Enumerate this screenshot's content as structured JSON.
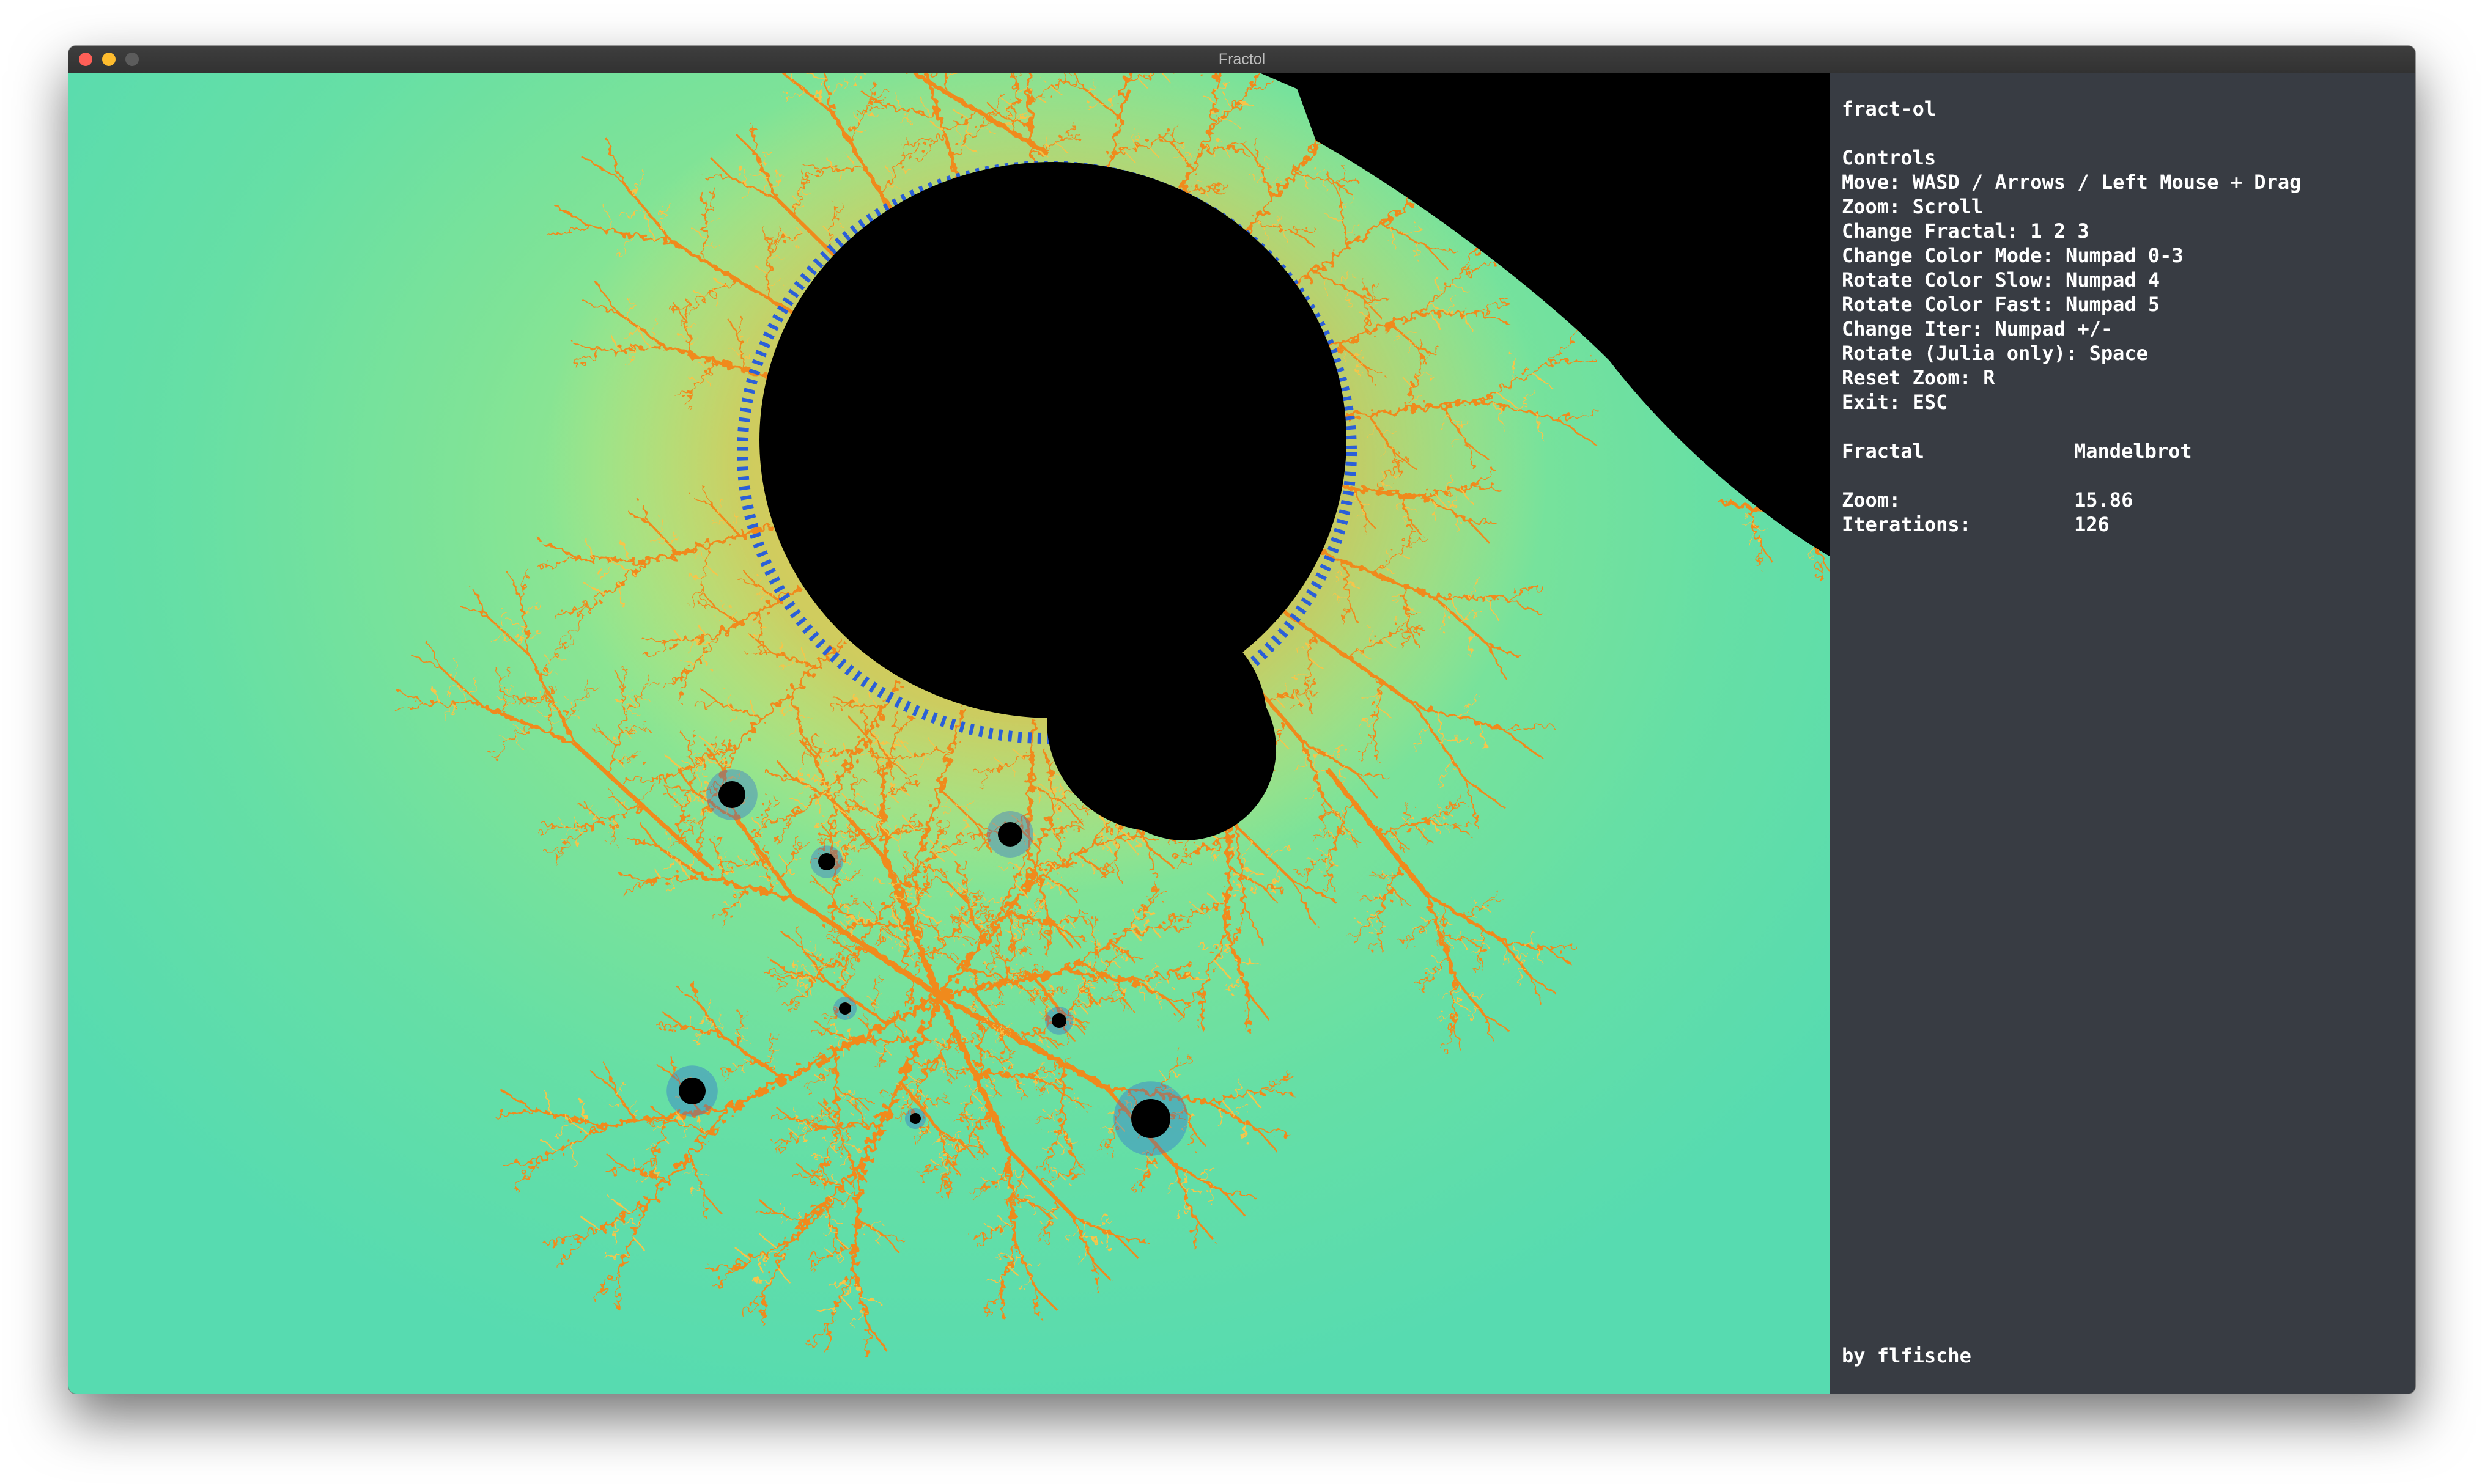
{
  "window": {
    "title": "Fractol",
    "buttons": {
      "close_color": "#ff5f57",
      "minimize_color": "#febc2e",
      "maximize_color": "#5c5c5c"
    }
  },
  "canvas": {
    "description_colors": {
      "background_light": "#b9ec86",
      "background_teal": "#57dbb0",
      "set": "#000000",
      "edge_blue": "#2b5fd8",
      "filament_orange": "#f08a1c",
      "filament_yellow": "#f7c548"
    }
  },
  "panel": {
    "app_name": "fract-ol",
    "controls_heading": "Controls",
    "controls": [
      "Move: WASD / Arrows / Left Mouse + Drag",
      "Zoom: Scroll",
      "Change Fractal: 1 2 3",
      "Change Color Mode: Numpad 0-3",
      "Rotate Color Slow: Numpad 4",
      "Rotate Color Fast: Numpad 5",
      "Change Iter: Numpad +/-",
      "Rotate (Julia only): Space",
      "Reset Zoom: R",
      "Exit: ESC"
    ],
    "fractal_label": "Fractal",
    "fractal_value": "Mandelbrot",
    "zoom_label": "Zoom:",
    "zoom_value": "15.86",
    "iterations_label": "Iterations:",
    "iterations_value": "126",
    "footer": "by flfische"
  }
}
